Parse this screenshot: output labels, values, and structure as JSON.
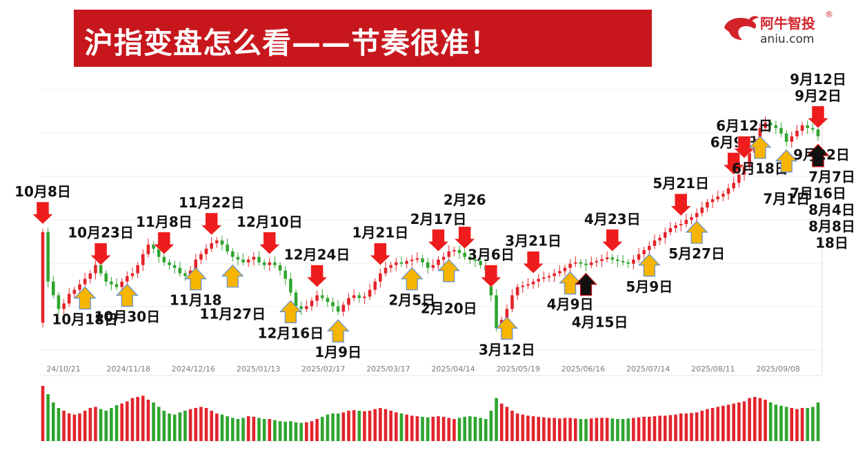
{
  "header": {
    "title": "沪指变盘怎么看——节奏很准！"
  },
  "logo": {
    "name_cn": "阿牛智投",
    "registered": "®",
    "url": "aniu.com"
  },
  "colors": {
    "up": "#e3242b",
    "down": "#2ea52e",
    "red_arrow": "#ee1c1c",
    "yellow_arrow": "#f7b400",
    "black_arrow": "#111111",
    "title_bg": "#c8161d"
  },
  "chart_data": {
    "type": "candlestick",
    "x_tick_labels": [
      "24/10/21",
      "2024/11/18",
      "2024/12/16",
      "2025/01/13",
      "2025/02/17",
      "2025/03/17",
      "2025/04/14",
      "2025/05/19",
      "2025/06/16",
      "2025/07/14",
      "2025/08/11",
      "2025/09/08"
    ],
    "close_series": [
      3480,
      3300,
      3250,
      3200,
      3220,
      3255,
      3270,
      3290,
      3310,
      3330,
      3360,
      3330,
      3300,
      3290,
      3280,
      3300,
      3320,
      3330,
      3360,
      3400,
      3435,
      3420,
      3390,
      3370,
      3360,
      3350,
      3330,
      3320,
      3340,
      3380,
      3400,
      3420,
      3440,
      3450,
      3435,
      3410,
      3390,
      3380,
      3370,
      3380,
      3390,
      3370,
      3360,
      3370,
      3360,
      3340,
      3310,
      3260,
      3210,
      3200,
      3210,
      3230,
      3250,
      3240,
      3225,
      3210,
      3190,
      3215,
      3240,
      3250,
      3240,
      3245,
      3270,
      3300,
      3330,
      3350,
      3360,
      3370,
      3365,
      3375,
      3380,
      3385,
      3370,
      3350,
      3360,
      3380,
      3390,
      3410,
      3415,
      3405,
      3390,
      3380,
      3375,
      3360,
      3340,
      3250,
      3130,
      3160,
      3200,
      3250,
      3280,
      3285,
      3290,
      3300,
      3310,
      3315,
      3320,
      3330,
      3338,
      3350,
      3365,
      3370,
      3365,
      3360,
      3370,
      3375,
      3382,
      3388,
      3380,
      3375,
      3370,
      3365,
      3380,
      3400,
      3415,
      3430,
      3450,
      3460,
      3480,
      3495,
      3505,
      3510,
      3525,
      3535,
      3550,
      3570,
      3590,
      3600,
      3610,
      3620,
      3640,
      3660,
      3690,
      3720,
      3770,
      3820,
      3860,
      3880,
      3870,
      3860,
      3840,
      3810,
      3830,
      3850,
      3870,
      3860,
      3855,
      3830
    ],
    "volume_series": [
      1.0,
      0.85,
      0.7,
      0.6,
      0.55,
      0.5,
      0.48,
      0.5,
      0.55,
      0.6,
      0.62,
      0.58,
      0.55,
      0.6,
      0.65,
      0.68,
      0.72,
      0.78,
      0.8,
      0.82,
      0.75,
      0.7,
      0.62,
      0.55,
      0.5,
      0.48,
      0.52,
      0.55,
      0.58,
      0.6,
      0.62,
      0.6,
      0.55,
      0.5,
      0.48,
      0.45,
      0.42,
      0.4,
      0.42,
      0.45,
      0.44,
      0.42,
      0.4,
      0.4,
      0.38,
      0.36,
      0.35,
      0.36,
      0.34,
      0.33,
      0.34,
      0.36,
      0.4,
      0.44,
      0.48,
      0.5,
      0.5,
      0.52,
      0.55,
      0.56,
      0.55,
      0.54,
      0.55,
      0.58,
      0.6,
      0.58,
      0.55,
      0.52,
      0.5,
      0.48,
      0.46,
      0.45,
      0.44,
      0.43,
      0.44,
      0.45,
      0.44,
      0.42,
      0.4,
      0.42,
      0.44,
      0.45,
      0.44,
      0.42,
      0.4,
      0.55,
      0.78,
      0.68,
      0.62,
      0.55,
      0.5,
      0.48,
      0.46,
      0.45,
      0.44,
      0.43,
      0.42,
      0.42,
      0.41,
      0.42,
      0.42,
      0.41,
      0.4,
      0.4,
      0.41,
      0.42,
      0.42,
      0.42,
      0.41,
      0.4,
      0.4,
      0.41,
      0.42,
      0.43,
      0.44,
      0.44,
      0.45,
      0.46,
      0.46,
      0.47,
      0.48,
      0.5,
      0.5,
      0.51,
      0.52,
      0.55,
      0.58,
      0.6,
      0.62,
      0.64,
      0.66,
      0.68,
      0.7,
      0.72,
      0.78,
      0.8,
      0.78,
      0.75,
      0.7,
      0.66,
      0.64,
      0.62,
      0.6,
      0.58,
      0.6,
      0.6,
      0.62,
      0.7
    ]
  },
  "markers": [
    {
      "label": "10月8日",
      "type": "red",
      "idx": 0
    },
    {
      "label": "10月23日",
      "type": "red",
      "idx": 11
    },
    {
      "label": "10月18日",
      "type": "yellow",
      "idx": 8
    },
    {
      "label": "10月30日",
      "type": "yellow",
      "idx": 16
    },
    {
      "label": "11月8日",
      "type": "red",
      "idx": 23
    },
    {
      "label": "11月22日",
      "type": "red",
      "idx": 32
    },
    {
      "label": "11月18",
      "type": "yellow",
      "idx": 29
    },
    {
      "label": "11月27日",
      "type": "yellow",
      "idx": 36
    },
    {
      "label": "12月10日",
      "type": "red",
      "idx": 43
    },
    {
      "label": "12月24日",
      "type": "red",
      "idx": 52
    },
    {
      "label": "12月16日",
      "type": "yellow",
      "idx": 47
    },
    {
      "label": "1月9日",
      "type": "yellow",
      "idx": 56
    },
    {
      "label": "1月21日",
      "type": "red",
      "idx": 64
    },
    {
      "label": "2月5日",
      "type": "yellow",
      "idx": 70
    },
    {
      "label": "2月17日",
      "type": "red",
      "idx": 75
    },
    {
      "label": "2月26",
      "type": "red",
      "idx": 80
    },
    {
      "label": "2月20日",
      "type": "yellow",
      "idx": 77
    },
    {
      "label": "3月6日",
      "type": "red",
      "idx": 85
    },
    {
      "label": "3月12日",
      "type": "yellow",
      "idx": 88
    },
    {
      "label": "3月21日",
      "type": "red",
      "idx": 93
    },
    {
      "label": "4月9日",
      "type": "yellow",
      "idx": 100
    },
    {
      "label": "4月15日",
      "type": "black",
      "idx": 103
    },
    {
      "label": "4月23日",
      "type": "red",
      "idx": 108
    },
    {
      "label": "5月9日",
      "type": "yellow",
      "idx": 115
    },
    {
      "label": "5月21日",
      "type": "red",
      "idx": 121
    },
    {
      "label": "5月27日",
      "type": "yellow",
      "idx": 124
    },
    {
      "label": "6月9日",
      "type": "red",
      "idx": 131
    },
    {
      "label": "6月12日",
      "type": "red",
      "idx": 133
    },
    {
      "label": "6月18日",
      "type": "yellow",
      "idx": 136
    },
    {
      "label": "7月1日",
      "type": "yellow",
      "idx": 141
    },
    {
      "label": "7月7日",
      "type": "black",
      "idx": 149
    },
    {
      "label": "7月16日",
      "type": "yellow",
      "idx": 156
    },
    {
      "label": "8月4日",
      "type": "black",
      "idx": 163
    },
    {
      "label": "8月8日",
      "type": "black",
      "idx": 166
    },
    {
      "label": "18日",
      "type": "black",
      "idx": 169
    },
    {
      "label": "9月2日",
      "type": "red",
      "idx": 176
    },
    {
      "label": "9月12日",
      "type": "red",
      "idx": 182
    },
    {
      "label": "9月22日",
      "type": "none",
      "idx": 187
    }
  ]
}
